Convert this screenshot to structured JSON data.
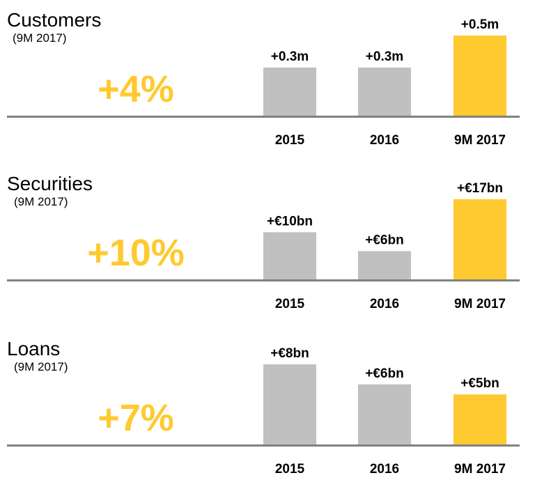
{
  "chart_data": [
    {
      "type": "bar",
      "title": "Customers",
      "subtitle": "(9M 2017)",
      "highlight": "+4%",
      "categories": [
        "2015",
        "2016",
        "9M 2017"
      ],
      "values": [
        0.3,
        0.3,
        0.5
      ],
      "value_labels": [
        "+0.3m",
        "+0.3m",
        "+0.5m"
      ],
      "colors": [
        "#c0c0c0",
        "#c0c0c0",
        "#ffca2f"
      ]
    },
    {
      "type": "bar",
      "title": "Securities",
      "subtitle": "(9M 2017)",
      "highlight": "+10%",
      "categories": [
        "2015",
        "2016",
        "9M 2017"
      ],
      "values": [
        10,
        6,
        17
      ],
      "value_labels": [
        "+€10bn",
        "+€6bn",
        "+€17bn"
      ],
      "colors": [
        "#c0c0c0",
        "#c0c0c0",
        "#ffca2f"
      ]
    },
    {
      "type": "bar",
      "title": "Loans",
      "subtitle": "(9M 2017)",
      "highlight": "+7%",
      "categories": [
        "2015",
        "2016",
        "9M 2017"
      ],
      "values": [
        8,
        6,
        5
      ],
      "value_labels": [
        "+€8bn",
        "+€6bn",
        "+€5bn"
      ],
      "colors": [
        "#c0c0c0",
        "#c0c0c0",
        "#ffca2f"
      ]
    }
  ]
}
